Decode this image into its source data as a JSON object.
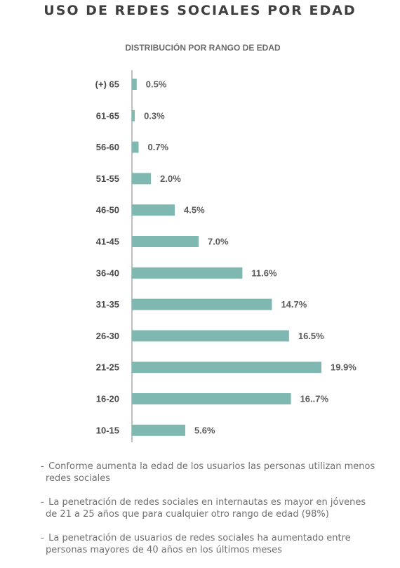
{
  "title": "USO DE REDES SOCIALES POR EDAD",
  "subtitle": "DISTRIBUCIÓN POR RANGO DE EDAD",
  "chart_data": {
    "type": "bar",
    "orientation": "horizontal",
    "categories": [
      "(+) 65",
      "61-65",
      "56-60",
      "51-55",
      "46-50",
      "41-45",
      "36-40",
      "31-35",
      "26-30",
      "21-25",
      "16-20",
      "10-15"
    ],
    "values": [
      0.5,
      0.3,
      0.7,
      2.0,
      4.5,
      7.0,
      11.6,
      14.7,
      16.5,
      19.9,
      16.7,
      5.6
    ],
    "value_labels": [
      "0.5%",
      "0.3%",
      "0.7%",
      "2.0%",
      "4.5%",
      "7.0%",
      "11.6%",
      "14.7%",
      "16.5%",
      "19.9%",
      "16..7%",
      "5.6%"
    ],
    "bar_color": "#7fb8b0",
    "grid": false,
    "legend": "none"
  },
  "notes": [
    "Conforme aumenta la edad de los usuarios las personas utilizan menos redes sociales",
    "La penetración de redes sociales en internautas es mayor en jóvenes de 21 a 25 años que para cualquier otro rango de edad (98%)",
    "La penetración de usuarios de redes sociales ha aumentado entre personas mayores de 40 años en los últimos meses"
  ]
}
